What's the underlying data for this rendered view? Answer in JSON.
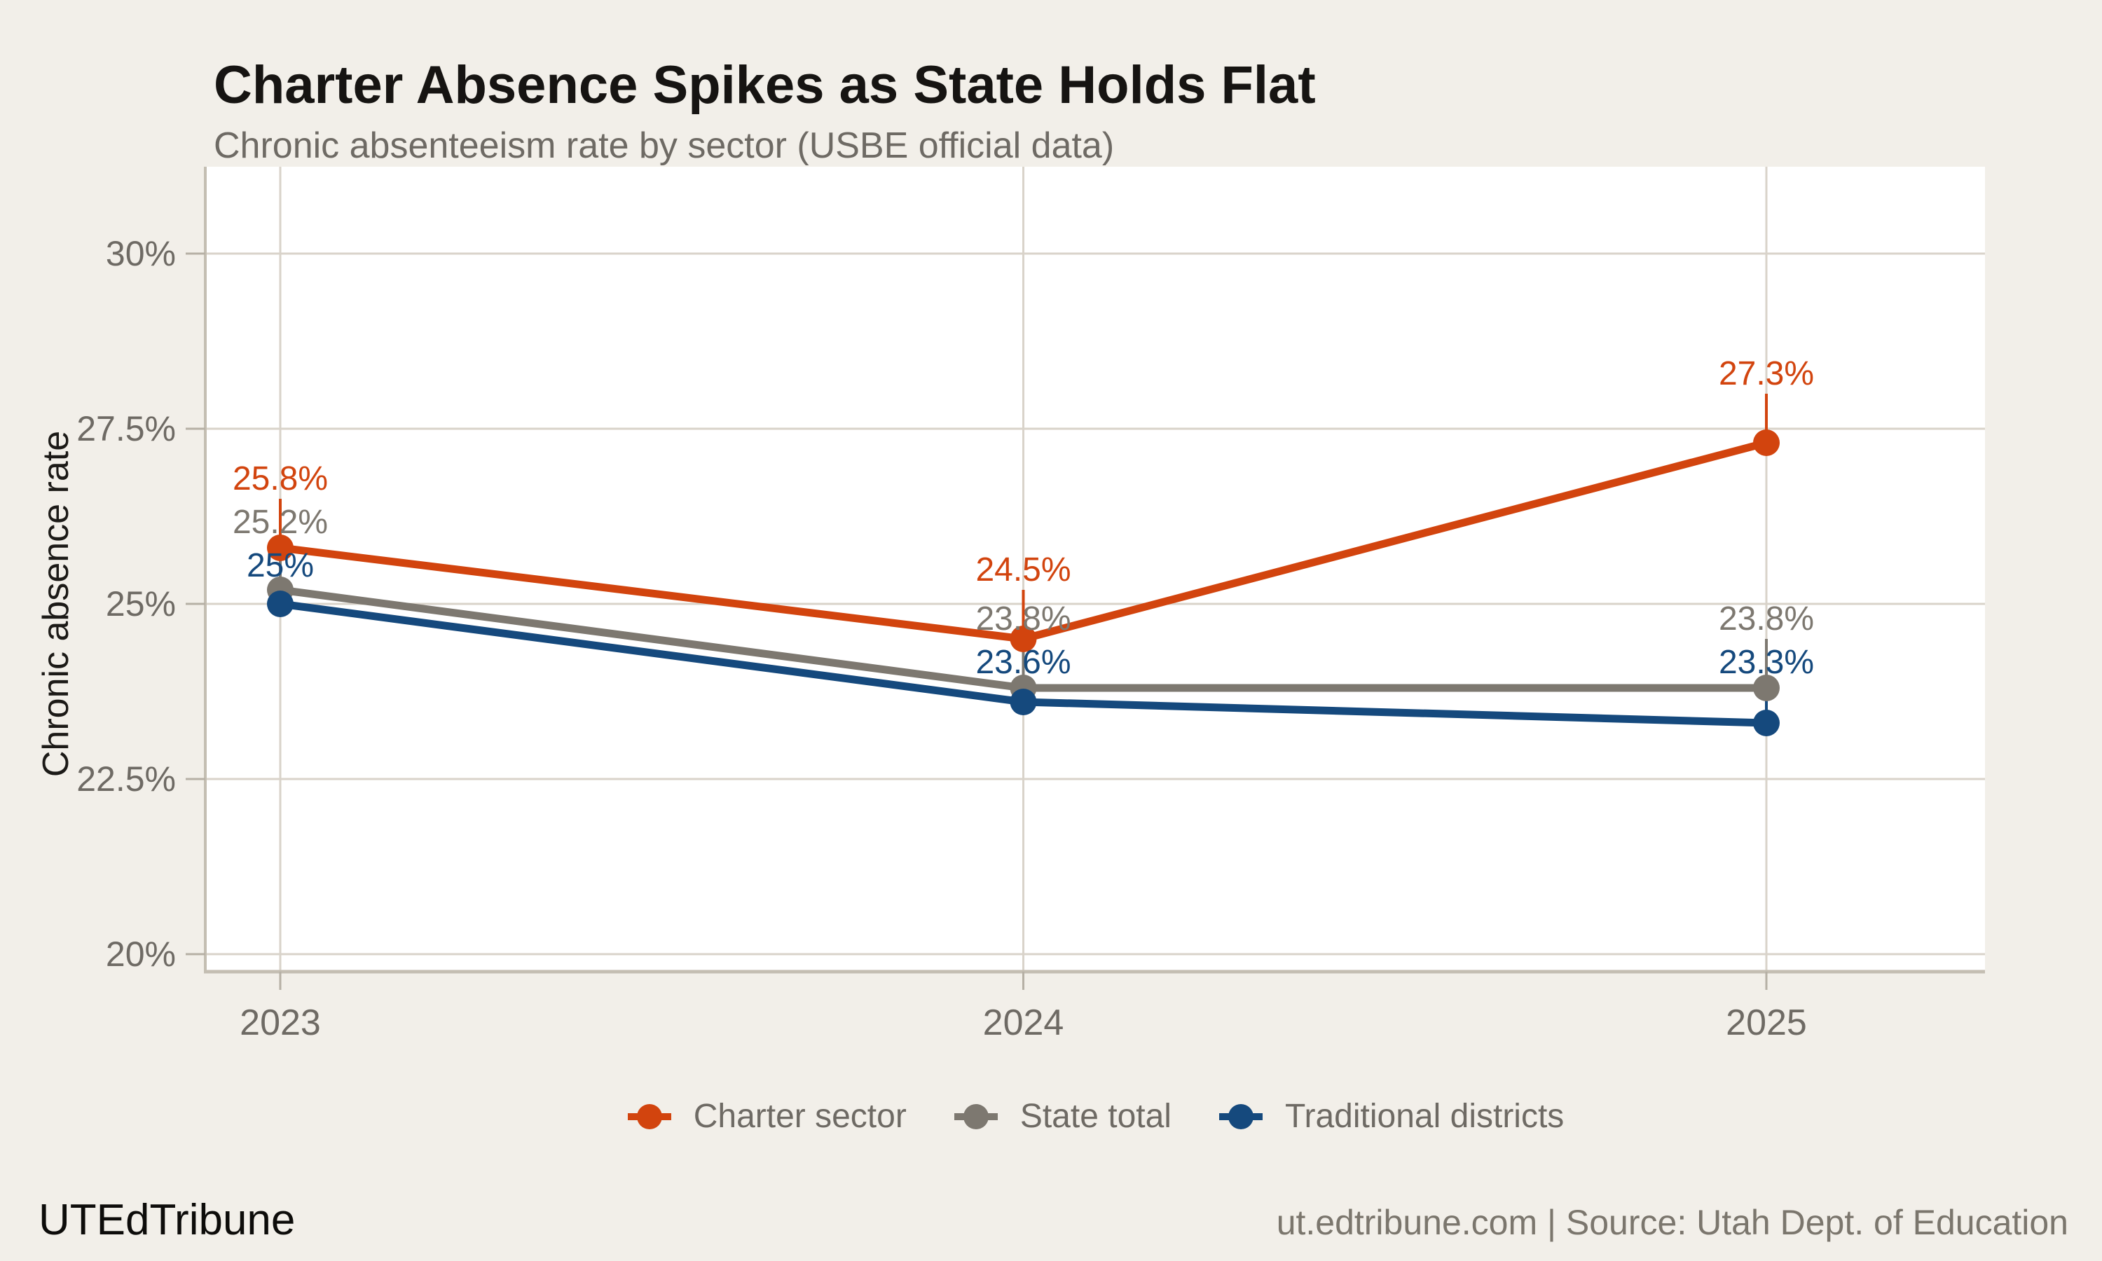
{
  "header": {
    "title": "Charter Absence Spikes as State Holds Flat",
    "subtitle": "Chronic absenteeism rate by sector (USBE official data)"
  },
  "chart_data": {
    "type": "line",
    "x": [
      2023,
      2024,
      2025
    ],
    "x_labels": [
      "2023",
      "2024",
      "2025"
    ],
    "series": [
      {
        "name": "Charter sector",
        "color": "#d2440e",
        "values": [
          25.8,
          24.5,
          27.3
        ],
        "point_labels": [
          "25.8%",
          "24.5%",
          "27.3%"
        ]
      },
      {
        "name": "State total",
        "color": "#7d7870",
        "values": [
          25.2,
          23.8,
          23.8
        ],
        "point_labels": [
          "25.2%",
          "23.8%",
          "23.8%"
        ]
      },
      {
        "name": "Traditional districts",
        "color": "#15497d",
        "values": [
          25.0,
          23.6,
          23.3
        ],
        "point_labels": [
          "25%",
          "23.6%",
          "23.3%"
        ]
      }
    ],
    "ylabel": "Chronic absence rate",
    "xlabel": "",
    "y_ticks": [
      {
        "value": 20,
        "label": "20%"
      },
      {
        "value": 22.5,
        "label": "22.5%"
      },
      {
        "value": 25,
        "label": "25%"
      },
      {
        "value": 27.5,
        "label": "27.5%"
      },
      {
        "value": 30,
        "label": "30%"
      }
    ],
    "ylim": [
      19.75,
      31.24
    ],
    "grid": true,
    "legend_position": "bottom"
  },
  "footer": {
    "brand": "UTEdTribune",
    "source": "ut.edtribune.com | Source: Utah Dept. of Education"
  }
}
